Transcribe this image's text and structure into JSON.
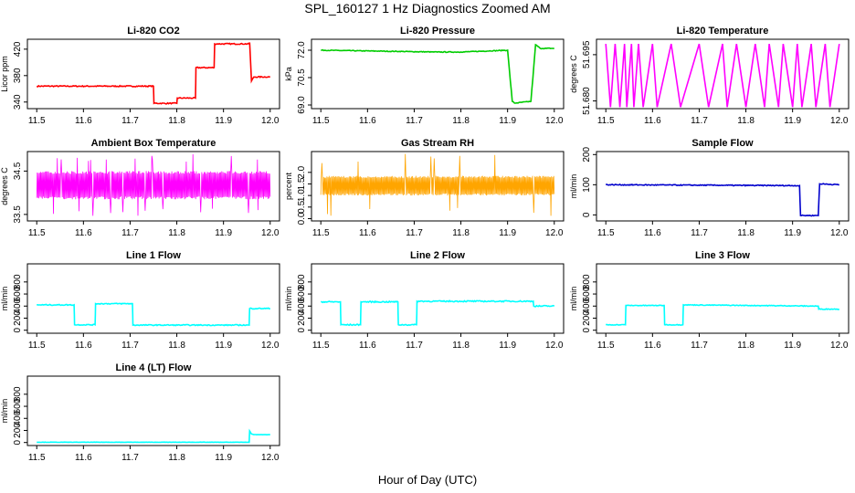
{
  "title": "SPL_160127  1 Hz Diagnostics Zoomed AM",
  "xlabel": "Hour of Day (UTC)",
  "colors": {
    "red": "#ff0000",
    "green": "#00cc00",
    "magenta": "#ff00ff",
    "orange": "#ffa500",
    "blue": "#0000cc",
    "cyan": "#00ffff"
  },
  "chart_data": [
    {
      "type": "line",
      "title": "Li-820 CO2",
      "ylabel": "Licor ppm",
      "xlim": [
        11.5,
        12.0
      ],
      "ylim": [
        330,
        435
      ],
      "xticks": [
        "11.5",
        "11.6",
        "11.7",
        "11.8",
        "11.9",
        "12.0"
      ],
      "xtick_values": [
        11.5,
        11.6,
        11.7,
        11.8,
        11.9,
        12.0
      ],
      "yticks": [
        "340",
        "380",
        "420"
      ],
      "ytick_values": [
        340,
        380,
        420
      ],
      "color": "red",
      "noise": 0.8,
      "x": [
        11.5,
        11.75,
        11.751,
        11.8,
        11.801,
        11.84,
        11.841,
        11.88,
        11.881,
        11.955,
        11.956,
        11.96,
        11.965,
        12.0
      ],
      "y": [
        364,
        364,
        338,
        338,
        346,
        346,
        392,
        392,
        428,
        428,
        430,
        372,
        378,
        378
      ]
    },
    {
      "type": "line",
      "title": "Li-820 Pressure",
      "ylabel": "kPa",
      "xlim": [
        11.5,
        12.0
      ],
      "ylim": [
        68.8,
        72.6
      ],
      "xticks": [
        "11.5",
        "11.6",
        "11.7",
        "11.8",
        "11.9",
        "12.0"
      ],
      "xtick_values": [
        11.5,
        11.6,
        11.7,
        11.8,
        11.9,
        12.0
      ],
      "yticks": [
        "69.0",
        "70.5",
        "72.0"
      ],
      "ytick_values": [
        69.0,
        70.5,
        72.0
      ],
      "color": "green",
      "noise": 0.02,
      "x": [
        11.5,
        11.75,
        11.8,
        11.9,
        11.91,
        11.915,
        11.95,
        11.96,
        11.97,
        12.0
      ],
      "y": [
        72.0,
        71.9,
        71.9,
        72.0,
        69.2,
        69.1,
        69.2,
        72.3,
        72.1,
        72.1
      ]
    },
    {
      "type": "line",
      "title": "Li-820 Temperature",
      "ylabel": "degrees C",
      "xlim": [
        11.5,
        12.0
      ],
      "ylim": [
        51.6775,
        51.7
      ],
      "xticks": [
        "11.5",
        "11.6",
        "11.7",
        "11.8",
        "11.9",
        "12.0"
      ],
      "xtick_values": [
        11.5,
        11.6,
        11.7,
        11.8,
        11.9,
        12.0
      ],
      "yticks": [
        "51.680",
        "51.695"
      ],
      "ytick_values": [
        51.68,
        51.695
      ],
      "color": "magenta",
      "noise": 0,
      "x": [
        11.5,
        11.51,
        11.52,
        11.53,
        11.54,
        11.545,
        11.555,
        11.56,
        11.57,
        11.58,
        11.6,
        11.61,
        11.64,
        11.66,
        11.7,
        11.72,
        11.75,
        11.76,
        11.78,
        11.8,
        11.82,
        11.84,
        11.85,
        11.87,
        11.88,
        11.9,
        11.91,
        11.92,
        11.94,
        11.95,
        11.97,
        11.98,
        12.0
      ],
      "y": [
        51.6985,
        51.678,
        51.6985,
        51.678,
        51.6985,
        51.678,
        51.6985,
        51.678,
        51.6985,
        51.678,
        51.6985,
        51.678,
        51.6985,
        51.678,
        51.6985,
        51.678,
        51.6985,
        51.678,
        51.6985,
        51.678,
        51.6985,
        51.678,
        51.6985,
        51.678,
        51.6985,
        51.678,
        51.6985,
        51.678,
        51.6985,
        51.678,
        51.6985,
        51.678,
        51.6985
      ]
    },
    {
      "type": "line",
      "title": "Ambient Box Temperature",
      "ylabel": "degrees C",
      "xlim": [
        11.5,
        12.0
      ],
      "ylim": [
        33.35,
        34.95
      ],
      "xticks": [
        "11.5",
        "11.6",
        "11.7",
        "11.8",
        "11.9",
        "12.0"
      ],
      "xtick_values": [
        11.5,
        11.6,
        11.7,
        11.8,
        11.9,
        12.0
      ],
      "yticks": [
        "33.5",
        "34.5"
      ],
      "ytick_values": [
        33.5,
        34.5
      ],
      "color": "magenta",
      "noise": 0,
      "band": {
        "lo": 33.85,
        "hi": 34.5,
        "spikes_lo": 33.45,
        "spikes_hi": 34.9
      },
      "x": [
        11.5,
        12.0
      ],
      "y": [
        34.1,
        34.1
      ]
    },
    {
      "type": "line",
      "title": "Gas Stream RH",
      "ylabel": "percent",
      "xlim": [
        11.5,
        12.0
      ],
      "ylim": [
        -0.1,
        2.9
      ],
      "xticks": [
        "11.5",
        "11.6",
        "11.7",
        "11.8",
        "11.9",
        "12.0"
      ],
      "xtick_values": [
        11.5,
        11.6,
        11.7,
        11.8,
        11.9,
        12.0
      ],
      "yticks": [
        "0.0",
        "0.5",
        "1.0",
        "1.5",
        "2.0"
      ],
      "ytick_values": [
        0.0,
        0.5,
        1.0,
        1.5,
        2.0
      ],
      "color": "orange",
      "noise": 0,
      "band": {
        "lo": 1.0,
        "hi": 1.85,
        "spikes_lo": 0.0,
        "spikes_hi": 2.8
      },
      "x": [
        11.5,
        12.0
      ],
      "y": [
        1.4,
        1.4
      ]
    },
    {
      "type": "line",
      "title": "Sample Flow",
      "ylabel": "ml/min",
      "xlim": [
        11.5,
        12.0
      ],
      "ylim": [
        -20,
        210
      ],
      "xticks": [
        "11.5",
        "11.6",
        "11.7",
        "11.8",
        "11.9",
        "12.0"
      ],
      "xtick_values": [
        11.5,
        11.6,
        11.7,
        11.8,
        11.9,
        12.0
      ],
      "yticks": [
        "0",
        "100",
        "200"
      ],
      "ytick_values": [
        0,
        100,
        200
      ],
      "color": "blue",
      "noise": 1.5,
      "x": [
        11.5,
        11.915,
        11.917,
        11.955,
        11.958,
        12.0
      ],
      "y": [
        100,
        97,
        -2,
        -2,
        103,
        100
      ]
    },
    {
      "type": "line",
      "title": "Line 1 Flow",
      "ylabel": "ml/min",
      "xlim": [
        11.5,
        12.0
      ],
      "ylim": [
        -50,
        1100
      ],
      "xticks": [
        "11.5",
        "11.6",
        "11.7",
        "11.8",
        "11.9",
        "12.0"
      ],
      "xtick_values": [
        11.5,
        11.6,
        11.7,
        11.8,
        11.9,
        12.0
      ],
      "yticks": [
        "0",
        "200",
        "400",
        "600",
        "800"
      ],
      "ytick_values": [
        0,
        200,
        400,
        600,
        800
      ],
      "color": "cyan",
      "noise": 8,
      "x": [
        11.5,
        11.58,
        11.581,
        11.625,
        11.626,
        11.705,
        11.706,
        11.955,
        11.956,
        12.0
      ],
      "y": [
        420,
        420,
        90,
        90,
        440,
        440,
        85,
        85,
        360,
        360
      ]
    },
    {
      "type": "line",
      "title": "Line 2 Flow",
      "ylabel": "ml/min",
      "xlim": [
        11.5,
        12.0
      ],
      "ylim": [
        -50,
        1100
      ],
      "xticks": [
        "11.5",
        "11.6",
        "11.7",
        "11.8",
        "11.9",
        "12.0"
      ],
      "xtick_values": [
        11.5,
        11.6,
        11.7,
        11.8,
        11.9,
        12.0
      ],
      "yticks": [
        "0",
        "200",
        "400",
        "600",
        "800"
      ],
      "ytick_values": [
        0,
        200,
        400,
        600,
        800
      ],
      "color": "cyan",
      "noise": 10,
      "x": [
        11.5,
        11.542,
        11.543,
        11.585,
        11.586,
        11.665,
        11.666,
        11.705,
        11.706,
        11.955,
        11.956,
        12.0
      ],
      "y": [
        470,
        470,
        90,
        90,
        470,
        470,
        90,
        90,
        480,
        480,
        400,
        400
      ]
    },
    {
      "type": "line",
      "title": "Line 3 Flow",
      "ylabel": "ml/min",
      "xlim": [
        11.5,
        12.0
      ],
      "ylim": [
        -50,
        1100
      ],
      "xticks": [
        "11.5",
        "11.6",
        "11.7",
        "11.8",
        "11.9",
        "12.0"
      ],
      "xtick_values": [
        11.5,
        11.6,
        11.7,
        11.8,
        11.9,
        12.0
      ],
      "yticks": [
        "0",
        "200",
        "400",
        "600",
        "800"
      ],
      "ytick_values": [
        0,
        200,
        400,
        600,
        800
      ],
      "color": "cyan",
      "noise": 6,
      "x": [
        11.5,
        11.542,
        11.543,
        11.625,
        11.626,
        11.665,
        11.666,
        11.955,
        11.956,
        12.0
      ],
      "y": [
        90,
        90,
        410,
        410,
        90,
        90,
        420,
        400,
        350,
        350
      ]
    },
    {
      "type": "line",
      "title": "Line 4 (LT) Flow",
      "ylabel": "ml/min",
      "xlim": [
        11.5,
        12.0
      ],
      "ylim": [
        -50,
        1100
      ],
      "xticks": [
        "11.5",
        "11.6",
        "11.7",
        "11.8",
        "11.9",
        "12.0"
      ],
      "xtick_values": [
        11.5,
        11.6,
        11.7,
        11.8,
        11.9,
        12.0
      ],
      "yticks": [
        "0",
        "200",
        "400",
        "600",
        "800"
      ],
      "ytick_values": [
        0,
        200,
        400,
        600,
        800
      ],
      "color": "cyan",
      "noise": 2,
      "x": [
        11.5,
        11.955,
        11.956,
        11.96,
        11.965,
        12.0
      ],
      "y": [
        5,
        5,
        190,
        140,
        130,
        130
      ]
    }
  ]
}
